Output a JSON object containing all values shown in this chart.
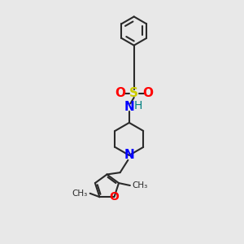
{
  "bg_color": "#e8e8e8",
  "bond_color": "#2a2a2a",
  "bond_width": 1.5,
  "S_color": "#cccc00",
  "O_color": "#ff0000",
  "N_color": "#0000ff",
  "H_color": "#008080",
  "C_color": "#2a2a2a",
  "fig_w": 3.0,
  "fig_h": 3.0,
  "dpi": 100,
  "xlim": [
    0,
    10
  ],
  "ylim": [
    0,
    10
  ]
}
